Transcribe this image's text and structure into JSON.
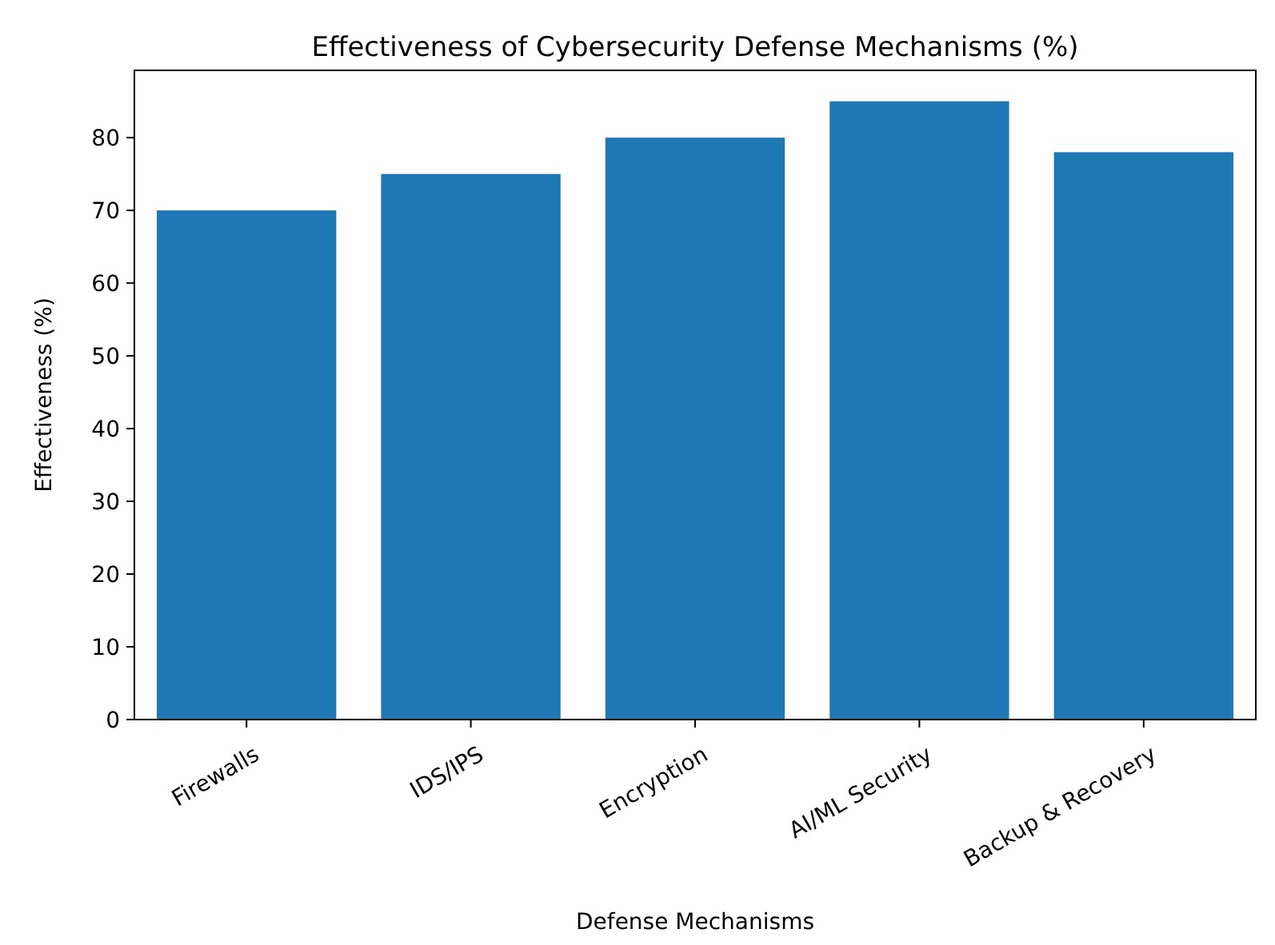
{
  "chart_data": {
    "type": "bar",
    "title": "Effectiveness of Cybersecurity Defense Mechanisms (%)",
    "xlabel": "Defense Mechanisms",
    "ylabel": "Effectiveness (%)",
    "categories": [
      "Firewalls",
      "IDS/IPS",
      "Encryption",
      "AI/ML Security",
      "Backup & Recovery"
    ],
    "values": [
      70,
      75,
      80,
      85,
      78
    ],
    "color": "#1f77b4",
    "ylim": [
      0,
      89.25
    ],
    "yticks": [
      0,
      10,
      20,
      30,
      40,
      50,
      60,
      70,
      80
    ],
    "grid": false
  }
}
